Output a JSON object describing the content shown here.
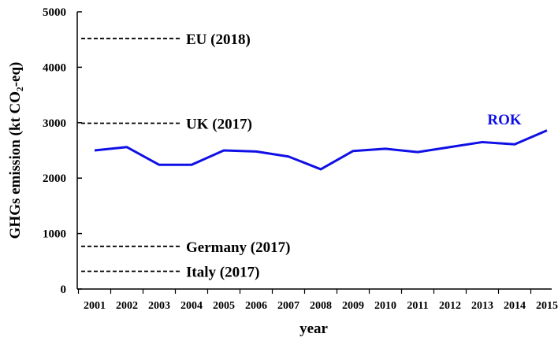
{
  "chart_data": {
    "type": "line",
    "xlabel": "year",
    "ylabel": "GHGs emission (kt CO₂-eq)",
    "ylim": [
      0,
      5000
    ],
    "yticks": [
      0,
      1000,
      2000,
      3000,
      4000,
      5000
    ],
    "grid": false,
    "categories": [
      "2001",
      "2002",
      "2003",
      "2004",
      "2005",
      "2006",
      "2007",
      "2008",
      "2009",
      "2010",
      "2011",
      "2012",
      "2013",
      "2014",
      "2015"
    ],
    "series": [
      {
        "name": "ROK",
        "color": "#1010e6",
        "values": [
          2500,
          2560,
          2240,
          2240,
          2500,
          2480,
          2390,
          2160,
          2490,
          2530,
          2470,
          2560,
          2650,
          2610,
          2860
        ]
      }
    ],
    "reference_lines": [
      {
        "label": "EU (2018)",
        "value": 4520
      },
      {
        "label": "UK (2017)",
        "value": 2990
      },
      {
        "label": "Germany (2017)",
        "value": 770
      },
      {
        "label": "Italy (2017)",
        "value": 320
      }
    ]
  }
}
